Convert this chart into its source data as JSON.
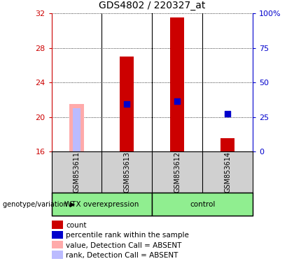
{
  "title": "GDS4802 / 220327_at",
  "samples": [
    "GSM853611",
    "GSM853613",
    "GSM853612",
    "GSM853614"
  ],
  "ylim_left": [
    16,
    32
  ],
  "ylim_right": [
    0,
    100
  ],
  "yticks_left": [
    16,
    20,
    24,
    28,
    32
  ],
  "yticks_right": [
    0,
    25,
    50,
    75,
    100
  ],
  "count_bars": {
    "GSM853611": null,
    "GSM853613": 27.0,
    "GSM853612": 31.5,
    "GSM853614": 17.5
  },
  "count_bar_color": "#cc0000",
  "absent_value_bars": {
    "GSM853611": 21.5,
    "GSM853613": null,
    "GSM853612": null,
    "GSM853614": null
  },
  "absent_value_color": "#ffaaaa",
  "absent_rank_bars": {
    "GSM853611": 21.0,
    "GSM853613": null,
    "GSM853612": null,
    "GSM853614": null
  },
  "absent_rank_color": "#bbbbff",
  "percentile_dots": {
    "GSM853611": null,
    "GSM853613": 21.5,
    "GSM853612": 21.8,
    "GSM853614": 20.4
  },
  "percentile_dot_color": "#0000cc",
  "percentile_dot_size": 35,
  "left_tick_color": "#cc0000",
  "right_tick_color": "#0000cc",
  "legend_items": [
    {
      "label": "count",
      "color": "#cc0000"
    },
    {
      "label": "percentile rank within the sample",
      "color": "#0000cc"
    },
    {
      "label": "value, Detection Call = ABSENT",
      "color": "#ffaaaa"
    },
    {
      "label": "rank, Detection Call = ABSENT",
      "color": "#bbbbff"
    }
  ]
}
